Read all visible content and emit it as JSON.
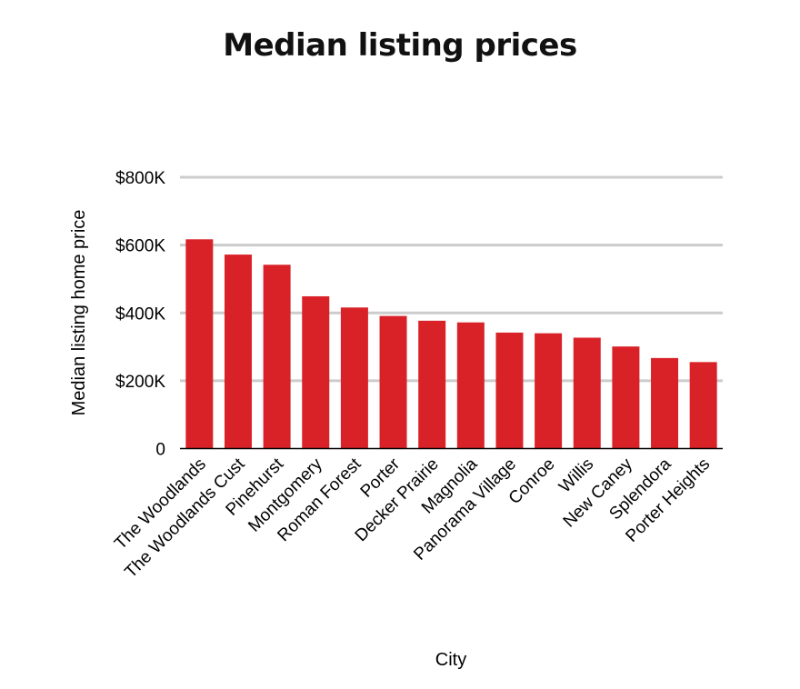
{
  "chart_data": {
    "type": "bar",
    "title": "Median listing prices",
    "xlabel": "City",
    "ylabel": "Median listing home price",
    "categories": [
      "The Woodlands",
      "The Woodlands Cust",
      "Pinehurst",
      "Montgomery",
      "Roman Forest",
      "Porter",
      "Decker Prairie",
      "Magnolia",
      "Panorama Village",
      "Conroe",
      "Willis",
      "New Caney",
      "Splendora",
      "Porter Heights"
    ],
    "values": [
      617000,
      572000,
      542000,
      449000,
      416000,
      391000,
      377000,
      372000,
      342000,
      340000,
      327000,
      301000,
      267000,
      255000
    ],
    "ylim": [
      0,
      800000
    ],
    "yticks": [
      0,
      200000,
      400000,
      600000,
      800000
    ],
    "ytick_labels": [
      "0",
      "$200K",
      "$400K",
      "$600K",
      "$800K"
    ],
    "grid": true,
    "bar_color": "#d92228",
    "grid_color": "#cccccc"
  }
}
